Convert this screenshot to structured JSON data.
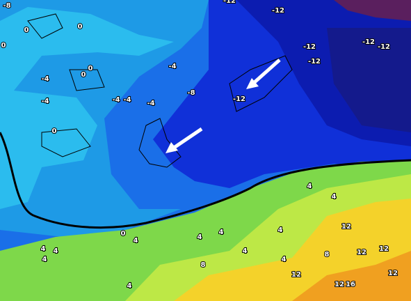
{
  "map": {
    "labels": [
      "-8",
      "-12",
      "-12",
      "0",
      "0",
      "0",
      "-12",
      "-12",
      "-12",
      "-12",
      "-4",
      "0",
      "0",
      "-4",
      "-8",
      "-12",
      "-4",
      "-4",
      "-4",
      "-4",
      "0",
      "4",
      "4",
      "0",
      "4",
      "4",
      "4",
      "4",
      "4",
      "4",
      "4",
      "4",
      "4",
      "8",
      "12",
      "12",
      "12",
      "8",
      "12",
      "12",
      "4",
      "12",
      "16"
    ]
  }
}
